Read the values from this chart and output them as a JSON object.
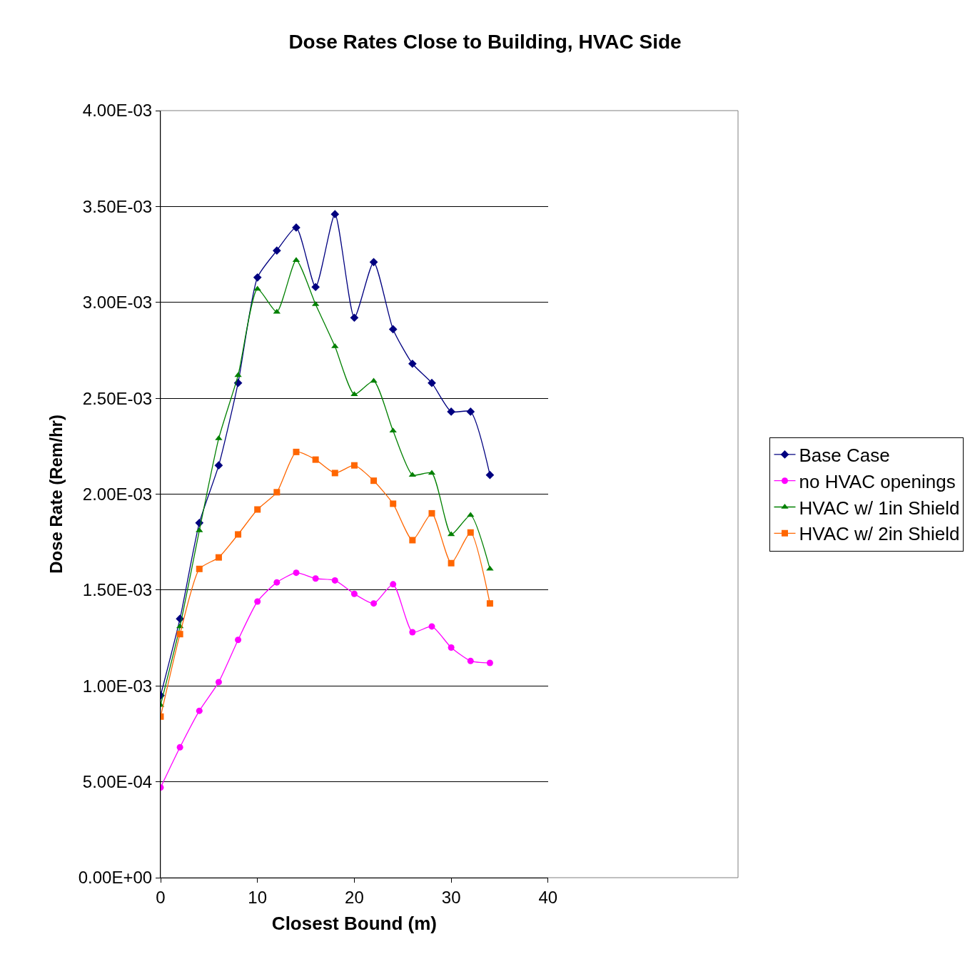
{
  "chart_data": {
    "type": "line",
    "title": "Dose Rates Close to Building, HVAC Side",
    "xlabel": "Closest Bound (m)",
    "ylabel": "Dose Rate (Rem/hr)",
    "x": [
      0,
      2,
      4,
      6,
      8,
      10,
      12,
      14,
      16,
      18,
      20,
      22,
      24,
      26,
      28,
      30,
      32,
      34
    ],
    "series": [
      {
        "name": "Base Case",
        "color": "#000080",
        "marker": "diamond",
        "values": [
          0.00095,
          0.00135,
          0.00185,
          0.00215,
          0.00258,
          0.00313,
          0.00327,
          0.00339,
          0.00308,
          0.00346,
          0.00292,
          0.00321,
          0.00286,
          0.00268,
          0.00258,
          0.00243,
          0.00243,
          0.0021
        ]
      },
      {
        "name": "no HVAC openings",
        "color": "#ff00ff",
        "marker": "circle",
        "values": [
          0.00047,
          0.00068,
          0.00087,
          0.00102,
          0.00124,
          0.00144,
          0.00154,
          0.00159,
          0.00156,
          0.00155,
          0.00148,
          0.00143,
          0.00153,
          0.00128,
          0.00131,
          0.0012,
          0.00113,
          0.00112
        ]
      },
      {
        "name": "HVAC w/ 1in Shield",
        "color": "#008000",
        "marker": "triangle",
        "values": [
          0.0009,
          0.00131,
          0.00181,
          0.00229,
          0.00262,
          0.00307,
          0.00295,
          0.00322,
          0.00299,
          0.00277,
          0.00252,
          0.00259,
          0.00233,
          0.0021,
          0.00211,
          0.00179,
          0.00189,
          0.00161
        ]
      },
      {
        "name": "HVAC w/ 2in Shield",
        "color": "#ff6600",
        "marker": "square",
        "values": [
          0.00084,
          0.00127,
          0.00161,
          0.00167,
          0.00179,
          0.00192,
          0.00201,
          0.00222,
          0.00218,
          0.00211,
          0.00215,
          0.00207,
          0.00195,
          0.00176,
          0.0019,
          0.00164,
          0.0018,
          0.00143
        ]
      }
    ],
    "xlim": [
      0,
      40
    ],
    "xticks": [
      0,
      10,
      20,
      30,
      40
    ],
    "ylim": [
      0,
      0.004
    ],
    "yticks": [
      {
        "value": 0,
        "label": "0.00E+00"
      },
      {
        "value": 0.0005,
        "label": "5.00E-04"
      },
      {
        "value": 0.001,
        "label": "1.00E-03"
      },
      {
        "value": 0.0015,
        "label": "1.50E-03"
      },
      {
        "value": 0.002,
        "label": "2.00E-03"
      },
      {
        "value": 0.0025,
        "label": "2.50E-03"
      },
      {
        "value": 0.003,
        "label": "3.00E-03"
      },
      {
        "value": 0.0035,
        "label": "3.50E-03"
      },
      {
        "value": 0.004,
        "label": "4.00E-03"
      }
    ],
    "grid": "y",
    "legend": "right",
    "line_style": "solid"
  }
}
